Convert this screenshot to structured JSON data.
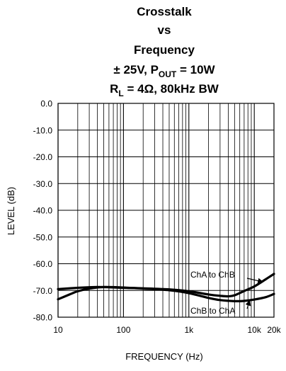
{
  "chart_data": {
    "type": "line",
    "title_lines": [
      "Crosstalk",
      "vs",
      "Frequency"
    ],
    "subtitle_line1": {
      "prefix": "± 25V, P",
      "sub": "OUT",
      "suffix": " = 10W"
    },
    "subtitle_line2": {
      "prefix": "R",
      "sub": "L",
      "suffix": " = 4Ω, 80kHz BW"
    },
    "xlabel": "FREQUENCY (Hz)",
    "ylabel": "LEVEL (dB)",
    "x_scale": "log",
    "xlim": [
      10,
      20000
    ],
    "ylim": [
      -80,
      0
    ],
    "x_ticks": [
      {
        "value": 10,
        "label": "10"
      },
      {
        "value": 100,
        "label": "100"
      },
      {
        "value": 1000,
        "label": "1k"
      },
      {
        "value": 10000,
        "label": "10k"
      },
      {
        "value": 20000,
        "label": "20k"
      }
    ],
    "y_ticks": [
      {
        "value": 0,
        "label": "0.0"
      },
      {
        "value": -10,
        "label": "-10.0"
      },
      {
        "value": -20,
        "label": "-20.0"
      },
      {
        "value": -30,
        "label": "-30.0"
      },
      {
        "value": -40,
        "label": "-40.0"
      },
      {
        "value": -50,
        "label": "-50.0"
      },
      {
        "value": -60,
        "label": "-60.0"
      },
      {
        "value": -70,
        "label": "-70.0"
      },
      {
        "value": -80,
        "label": "-80.0"
      }
    ],
    "grid": true,
    "series": [
      {
        "name": "ChA to ChB",
        "color": "#000000",
        "x": [
          10,
          15,
          20,
          30,
          40,
          60,
          100,
          200,
          500,
          1000,
          2000,
          3000,
          4000,
          5000,
          7000,
          10000,
          15000,
          20000
        ],
        "y": [
          -69.5,
          -69.2,
          -69.0,
          -68.8,
          -68.7,
          -68.8,
          -69.0,
          -69.2,
          -69.6,
          -70.3,
          -71.5,
          -72.0,
          -72.2,
          -71.8,
          -70.2,
          -68.5,
          -65.8,
          -63.8
        ]
      },
      {
        "name": "ChB to ChA",
        "color": "#000000",
        "x": [
          10,
          15,
          20,
          30,
          50,
          100,
          200,
          500,
          1000,
          2000,
          3000,
          5000,
          7000,
          10000,
          15000,
          20000
        ],
        "y": [
          -73.3,
          -71.5,
          -70.3,
          -69.3,
          -68.7,
          -68.9,
          -69.3,
          -69.9,
          -71.0,
          -72.8,
          -73.6,
          -74.0,
          -73.9,
          -73.4,
          -72.5,
          -71.3
        ]
      }
    ],
    "annotations": [
      {
        "text": "ChA to ChB",
        "series": "ChA to ChB"
      },
      {
        "text": "ChB to ChA",
        "series": "ChB to ChA"
      }
    ]
  }
}
